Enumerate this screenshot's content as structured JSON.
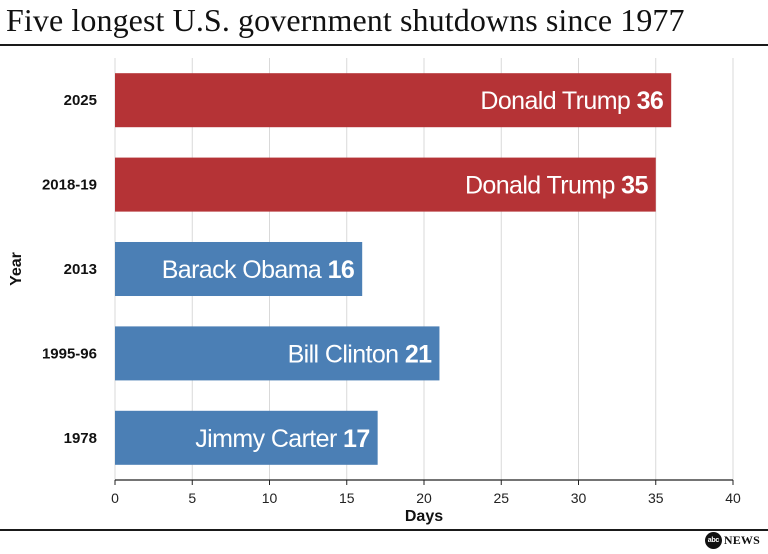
{
  "title": "Five longest U.S. government shutdowns since 1977",
  "colors": {
    "republican": "#b53336",
    "democrat": "#4b7fb5",
    "grid": "#d9d9d9",
    "axis": "#222222"
  },
  "chart_data": {
    "type": "bar",
    "orientation": "horizontal",
    "categories": [
      "2025",
      "2018-19",
      "2013",
      "1995-96",
      "1978"
    ],
    "values": [
      36,
      35,
      16,
      21,
      17
    ],
    "bar_labels": [
      "Donald Trump",
      "Donald Trump",
      "Barack Obama",
      "Bill Clinton",
      "Jimmy Carter"
    ],
    "bar_colors": [
      "#b53336",
      "#b53336",
      "#4b7fb5",
      "#4b7fb5",
      "#4b7fb5"
    ],
    "xlabel": "Days",
    "ylabel": "Year",
    "xlim": [
      0,
      40
    ],
    "xticks": [
      "0",
      "5",
      "10",
      "15",
      "20",
      "25",
      "30",
      "35",
      "40"
    ],
    "grid": "vertical"
  },
  "footer": {
    "logo_mark": "abc",
    "logo_word": "NEWS"
  }
}
